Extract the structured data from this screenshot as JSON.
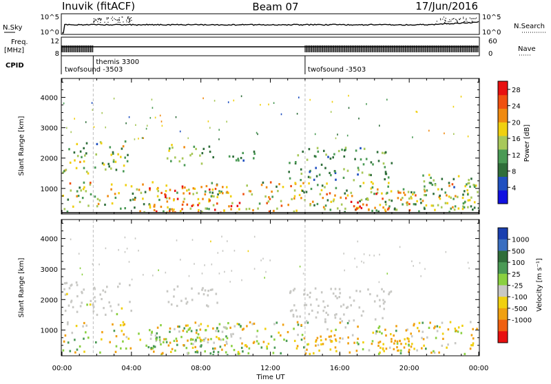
{
  "header": {
    "site": "Inuvik (fitACF)",
    "beam": "Beam 07",
    "date": "17/Jun/2016"
  },
  "top_panels": {
    "nsky_label": "N.Sky",
    "nsky_ticks": [
      "10^5",
      "10^0"
    ],
    "nsearch_label": "N.Search",
    "nsearch_ticks": [
      "10^5",
      "10^0"
    ],
    "freq_label_line1": "Freq.",
    "freq_label_line2": "[MHz]",
    "freq_ticks": [
      "12",
      "8"
    ],
    "nave_label": "Nave",
    "nave_ticks": [
      "60",
      "0"
    ],
    "cpid_label": "CPID",
    "cpid_segments": [
      {
        "name": "twofsound -3503",
        "start_hr": 0.0,
        "end_hr": 1.8
      },
      {
        "name": "themis 3300",
        "start_hr": 1.8,
        "end_hr": 14.0
      },
      {
        "name": "twofsound -3503",
        "start_hr": 14.0,
        "end_hr": 24.0
      }
    ]
  },
  "chart_data": [
    {
      "type": "heatmap",
      "xlabel": "",
      "ylabel": "Slant Range [km]",
      "x_ticks": [
        "00:00",
        "04:00",
        "08:00",
        "12:00",
        "16:00",
        "20:00",
        "00:00"
      ],
      "xlim_hours": [
        0,
        24
      ],
      "ylim": [
        180,
        4600
      ],
      "y_ticks": [
        1000,
        2000,
        3000,
        4000
      ],
      "colorbar_label": "Power [dB]",
      "colorbar_ticks": [
        4,
        8,
        12,
        16,
        20,
        24,
        28
      ],
      "colorbar_range": [
        0,
        30
      ],
      "colorbar_colors": [
        "#1010e0",
        "#2050c0",
        "#2f6e3a",
        "#4a9a55",
        "#a8c85a",
        "#f0d010",
        "#f08a10",
        "#f05010",
        "#e81010"
      ],
      "scatter_bands": [
        {
          "start_hr": 0.0,
          "end_hr": 3.8,
          "r_low": 1500,
          "r_high": 2600,
          "value_low": 6,
          "value_high": 22
        },
        {
          "start_hr": 0.0,
          "end_hr": 24.0,
          "r_low": 250,
          "r_high": 1250,
          "value_low": 8,
          "value_high": 24
        },
        {
          "start_hr": 5.0,
          "end_hr": 10.5,
          "r_low": 200,
          "r_high": 1100,
          "value_low": 18,
          "value_high": 30
        },
        {
          "start_hr": 6.0,
          "end_hr": 8.8,
          "r_low": 1800,
          "r_high": 2500,
          "value_low": 6,
          "value_high": 22
        },
        {
          "start_hr": 9.2,
          "end_hr": 11.2,
          "r_low": 1900,
          "r_high": 2300,
          "value_low": 6,
          "value_high": 12
        },
        {
          "start_hr": 13.0,
          "end_hr": 19.0,
          "r_low": 1300,
          "r_high": 2400,
          "value_low": 6,
          "value_high": 16
        },
        {
          "start_hr": 14.5,
          "end_hr": 20.5,
          "r_low": 300,
          "r_high": 900,
          "value_low": 14,
          "value_high": 28
        },
        {
          "start_hr": 20.5,
          "end_hr": 24.0,
          "r_low": 300,
          "r_high": 1500,
          "value_low": 6,
          "value_high": 20
        }
      ],
      "ground_scatter_range_km": 200
    },
    {
      "type": "heatmap",
      "xlabel": "Time UT",
      "ylabel": "Slant Range [km]",
      "x_ticks": [
        "00:00",
        "04:00",
        "08:00",
        "12:00",
        "16:00",
        "20:00",
        "00:00"
      ],
      "xlim_hours": [
        0,
        24
      ],
      "ylim": [
        180,
        4600
      ],
      "y_ticks": [
        1000,
        2000,
        3000,
        4000
      ],
      "colorbar_label": "Velocity [m s⁻¹]",
      "colorbar_ticks": [
        "1000",
        "500",
        "100",
        "25",
        "-25",
        "-100",
        "-500",
        "-1000"
      ],
      "colorbar_range": [
        -1000,
        1000
      ],
      "colorbar_colors": [
        "#1a3fb0",
        "#3a6ec0",
        "#2f6e3a",
        "#4a9a55",
        "#8ad040",
        "#c8c8c4",
        "#f0d010",
        "#f0a010",
        "#f06010",
        "#e81010"
      ],
      "scatter_bands": [
        {
          "start_hr": 0.0,
          "end_hr": 4.0,
          "r_low": 1500,
          "r_high": 2600,
          "value_low": -30,
          "value_high": 30
        },
        {
          "start_hr": 0.0,
          "end_hr": 24.0,
          "r_low": 250,
          "r_high": 1300,
          "value_low": -200,
          "value_high": 150
        },
        {
          "start_hr": 5.0,
          "end_hr": 10.5,
          "r_low": 200,
          "r_high": 1200,
          "value_low": -20,
          "value_high": 160
        },
        {
          "start_hr": 6.0,
          "end_hr": 9.0,
          "r_low": 1800,
          "r_high": 2500,
          "value_low": -20,
          "value_high": 20
        },
        {
          "start_hr": 13.0,
          "end_hr": 19.0,
          "r_low": 1300,
          "r_high": 2400,
          "value_low": -25,
          "value_high": 25
        },
        {
          "start_hr": 14.5,
          "end_hr": 21.0,
          "r_low": 300,
          "r_high": 900,
          "value_low": -300,
          "value_high": -40
        }
      ]
    }
  ]
}
